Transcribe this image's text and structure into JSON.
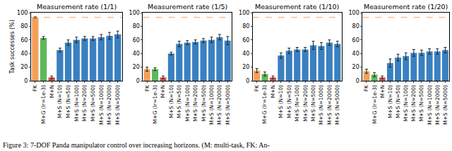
{
  "caption": "Figure 3: 7-DOF Panda manipulator control over increasing horizons. (M: multi-task, FK: An-",
  "chart_data": [
    {
      "type": "bar",
      "title": "Measurement rate (1/1)",
      "ylabel": "Task successes (%)",
      "categories": [
        "FK",
        "M+G (lr=1e-3)",
        "M+N",
        "M+S (N=10)",
        "M+S (N=50)",
        "M+S (N=100)",
        "M+S (N=200)",
        "M+S (N=500)",
        "M+S (N=1000)",
        "M+S (N=2000)",
        "M+S (N=5000)"
      ],
      "values": [
        93,
        63,
        5,
        45,
        56,
        60,
        62,
        62,
        64,
        66,
        68
      ],
      "errors": [
        1,
        2,
        2,
        3,
        4,
        4,
        3,
        3,
        4,
        5,
        5
      ],
      "colors": [
        "#f5a05a",
        "#5cb85c",
        "#d9534f",
        "#3a80c0",
        "#3a80c0",
        "#3a80c0",
        "#3a80c0",
        "#3a80c0",
        "#3a80c0",
        "#3a80c0",
        "#3a80c0"
      ],
      "reference_line": {
        "value": 93,
        "color": "#f5a05a",
        "line_style": "dashed"
      },
      "ylim": [
        0,
        100
      ],
      "yticks": [
        0,
        20,
        40,
        60,
        80,
        100
      ],
      "grid": false
    },
    {
      "type": "bar",
      "title": "Measurement rate (1/5)",
      "categories": [
        "FK",
        "M+G (lr=1e-3)",
        "M+N",
        "M+S (N=10)",
        "M+S (N=50)",
        "M+S (N=100)",
        "M+S (N=200)",
        "M+S (N=500)",
        "M+S (N=1000)",
        "M+S (N=2000)",
        "M+S (N=5000)"
      ],
      "values": [
        17,
        17,
        5,
        40,
        54,
        56,
        57,
        59,
        60,
        64,
        59
      ],
      "errors": [
        3,
        2,
        2,
        2,
        4,
        3,
        3,
        3,
        4,
        4,
        6
      ],
      "colors": [
        "#f5a05a",
        "#5cb85c",
        "#d9534f",
        "#3a80c0",
        "#3a80c0",
        "#3a80c0",
        "#3a80c0",
        "#3a80c0",
        "#3a80c0",
        "#3a80c0",
        "#3a80c0"
      ],
      "reference_line": {
        "value": 93,
        "color": "#f5a05a",
        "line_style": "dashed"
      },
      "ylim": [
        0,
        100
      ],
      "yticks": [
        0,
        20,
        40,
        60,
        80,
        100
      ],
      "grid": false
    },
    {
      "type": "bar",
      "title": "Measurement rate (1/10)",
      "categories": [
        "FK",
        "M+G (lr=1e-3)",
        "M+N",
        "M+S (N=10)",
        "M+S (N=50)",
        "M+S (N=100)",
        "M+S (N=200)",
        "M+S (N=500)",
        "M+S (N=1000)",
        "M+S (N=2000)",
        "M+S (N=5000)"
      ],
      "values": [
        15,
        10,
        5,
        37,
        44,
        46,
        46,
        52,
        51,
        56,
        54
      ],
      "errors": [
        3,
        3,
        2,
        4,
        4,
        3,
        3,
        6,
        5,
        4,
        4
      ],
      "colors": [
        "#f5a05a",
        "#5cb85c",
        "#d9534f",
        "#3a80c0",
        "#3a80c0",
        "#3a80c0",
        "#3a80c0",
        "#3a80c0",
        "#3a80c0",
        "#3a80c0",
        "#3a80c0"
      ],
      "reference_line": {
        "value": 93,
        "color": "#f5a05a",
        "line_style": "dashed"
      },
      "ylim": [
        0,
        100
      ],
      "yticks": [
        0,
        20,
        40,
        60,
        80,
        100
      ],
      "grid": false
    },
    {
      "type": "bar",
      "title": "Measurement rate (1/20)",
      "categories": [
        "FK",
        "M+G (lr=1e-3)",
        "M+N",
        "M+S (N=10)",
        "M+S (N=50)",
        "M+S (N=100)",
        "M+S (N=200)",
        "M+S (N=500)",
        "M+S (N=1000)",
        "M+S (N=2000)",
        "M+S (N=5000)"
      ],
      "values": [
        14,
        9,
        5,
        26,
        34,
        36,
        41,
        41,
        43,
        43,
        45
      ],
      "errors": [
        3,
        3,
        2,
        6,
        5,
        5,
        5,
        4,
        4,
        4,
        4
      ],
      "colors": [
        "#f5a05a",
        "#5cb85c",
        "#d9534f",
        "#3a80c0",
        "#3a80c0",
        "#3a80c0",
        "#3a80c0",
        "#3a80c0",
        "#3a80c0",
        "#3a80c0",
        "#3a80c0"
      ],
      "reference_line": {
        "value": 93,
        "color": "#f5a05a",
        "line_style": "dashed"
      },
      "ylim": [
        0,
        100
      ],
      "yticks": [
        0,
        20,
        40,
        60,
        80,
        100
      ],
      "grid": false
    }
  ]
}
